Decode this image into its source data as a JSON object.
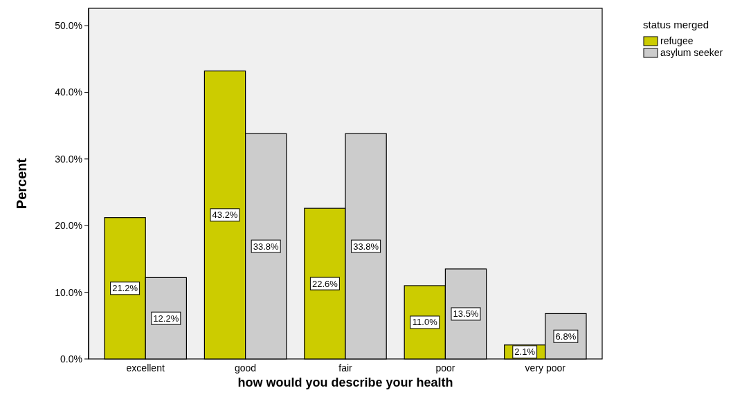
{
  "chart_data": {
    "type": "bar",
    "xlabel": "how would you describe your health",
    "ylabel": "Percent",
    "legend_title": "status merged",
    "legend": "top right",
    "grid": false,
    "categories": [
      "excellent",
      "good",
      "fair",
      "poor",
      "very poor"
    ],
    "series": [
      {
        "name": "refugee",
        "color": "#cccc00",
        "values": [
          21.2,
          43.2,
          22.6,
          11.0,
          2.1
        ],
        "value_labels": [
          "21.2%",
          "43.2%",
          "22.6%",
          "11.0%",
          "2.1%"
        ]
      },
      {
        "name": "asylum seeker",
        "color": "#cccccc",
        "values": [
          12.2,
          33.8,
          33.8,
          13.5,
          6.8
        ],
        "value_labels": [
          "12.2%",
          "33.8%",
          "33.8%",
          "13.5%",
          "6.8%"
        ]
      }
    ],
    "ylim": [
      0,
      52.6
    ],
    "yticks": [
      {
        "value": 0,
        "label": "0.0%"
      },
      {
        "value": 10,
        "label": "10.0%"
      },
      {
        "value": 20,
        "label": "20.0%"
      },
      {
        "value": 30,
        "label": "30.0%"
      },
      {
        "value": 40,
        "label": "40.0%"
      },
      {
        "value": 50,
        "label": "50.0%"
      }
    ]
  }
}
